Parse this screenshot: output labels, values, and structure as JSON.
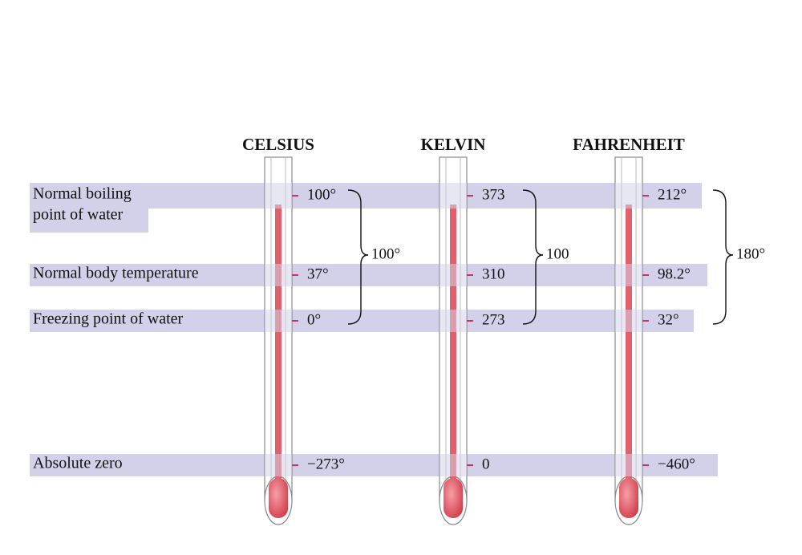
{
  "scales": [
    {
      "name": "CELSIUS",
      "readings": [
        "100°",
        "37°",
        "0°",
        "−273°"
      ],
      "range": "100°"
    },
    {
      "name": "KELVIN",
      "readings": [
        "373",
        "310",
        "273",
        "0"
      ],
      "range": "100"
    },
    {
      "name": "FAHRENHEIT",
      "readings": [
        "212°",
        "98.2°",
        "32°",
        "−460°"
      ],
      "range": "180°"
    }
  ],
  "rows": [
    {
      "label": [
        "Normal boiling",
        "point of water"
      ]
    },
    {
      "label": [
        "Normal body temperature"
      ]
    },
    {
      "label": [
        "Freezing point of water"
      ]
    },
    {
      "label": [
        "Absolute zero"
      ]
    }
  ]
}
